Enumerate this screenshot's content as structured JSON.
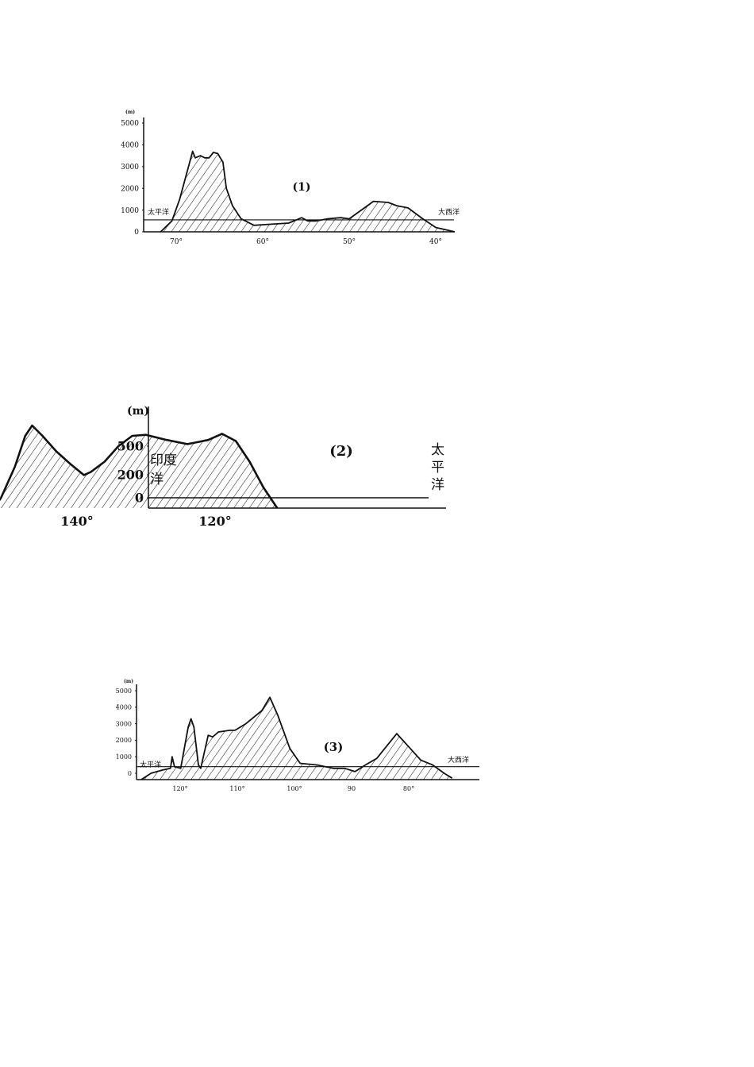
{
  "profiles": [
    {
      "label": "(1)",
      "unit": "(m)",
      "left_label": "太平洋",
      "right_label": "大西洋",
      "y_ticks": [
        0,
        1000,
        2000,
        3000,
        4000,
        5000
      ],
      "x_ticks": [
        {
          "value": 70,
          "label": "70°"
        },
        {
          "value": 60,
          "label": "60°"
        },
        {
          "value": 50,
          "label": "50°"
        },
        {
          "value": 40,
          "label": "40°"
        }
      ],
      "sea_level_line": 550,
      "points": [
        [
          71.8,
          0
        ],
        [
          70.5,
          500
        ],
        [
          69.6,
          1500
        ],
        [
          68.1,
          3700
        ],
        [
          67.8,
          3400
        ],
        [
          67.2,
          3500
        ],
        [
          66.7,
          3400
        ],
        [
          66.2,
          3400
        ],
        [
          65.7,
          3650
        ],
        [
          65.2,
          3600
        ],
        [
          64.6,
          3200
        ],
        [
          64.2,
          2000
        ],
        [
          63.5,
          1200
        ],
        [
          62.5,
          600
        ],
        [
          61,
          300
        ],
        [
          59,
          350
        ],
        [
          57,
          400
        ],
        [
          55.5,
          650
        ],
        [
          54.8,
          500
        ],
        [
          53.8,
          500
        ],
        [
          52.5,
          600
        ],
        [
          51,
          650
        ],
        [
          50,
          600
        ],
        [
          48.6,
          1000
        ],
        [
          47.2,
          1400
        ],
        [
          45.5,
          1350
        ],
        [
          44.5,
          1200
        ],
        [
          43.2,
          1100
        ],
        [
          41.5,
          600
        ],
        [
          40,
          200
        ],
        [
          37.8,
          0
        ]
      ]
    },
    {
      "label": "(2)",
      "unit": "(m)",
      "left_label": "印度洋",
      "right_label": "太平洋",
      "y_ticks": [
        0,
        200,
        500
      ],
      "x_ticks": [
        {
          "value": 120,
          "label": "120°"
        },
        {
          "value": 140,
          "label": "140°"
        }
      ],
      "points": [
        [
          111,
          -100
        ],
        [
          113,
          100
        ],
        [
          115,
          350
        ],
        [
          117,
          550
        ],
        [
          119,
          620
        ],
        [
          121,
          560
        ],
        [
          124,
          520
        ],
        [
          127,
          560
        ],
        [
          130,
          610
        ],
        [
          132,
          600
        ],
        [
          134,
          500
        ],
        [
          136,
          350
        ],
        [
          138,
          250
        ],
        [
          139,
          220
        ],
        [
          141,
          330
        ],
        [
          143,
          450
        ],
        [
          145,
          600
        ],
        [
          146.5,
          700
        ],
        [
          147.5,
          600
        ],
        [
          149,
          300
        ],
        [
          151,
          0
        ],
        [
          152,
          -100
        ]
      ]
    },
    {
      "label": "(3)",
      "unit": "(m)",
      "left_label": "太平洋",
      "right_label": "大西洋",
      "y_ticks": [
        0,
        1000,
        2000,
        3000,
        4000,
        5000
      ],
      "x_ticks": [
        {
          "value": 120,
          "label": "120°"
        },
        {
          "value": 110,
          "label": "110°"
        },
        {
          "value": 100,
          "label": "100°"
        },
        {
          "value": 90,
          "label": "90"
        },
        {
          "value": 80,
          "label": "80°"
        }
      ],
      "sea_level_line": 400,
      "points": [
        [
          126.8,
          -400
        ],
        [
          125.1,
          0
        ],
        [
          123,
          200
        ],
        [
          121.7,
          300
        ],
        [
          121.4,
          1000
        ],
        [
          121,
          400
        ],
        [
          119.9,
          300
        ],
        [
          118.6,
          2800
        ],
        [
          118.1,
          3300
        ],
        [
          117.6,
          2800
        ],
        [
          116.8,
          500
        ],
        [
          116.4,
          300
        ],
        [
          115.1,
          2300
        ],
        [
          114.3,
          2200
        ],
        [
          113.3,
          2500
        ],
        [
          111.3,
          2600
        ],
        [
          110.4,
          2600
        ],
        [
          108.5,
          3000
        ],
        [
          105.7,
          3800
        ],
        [
          104.3,
          4600
        ],
        [
          102.9,
          3500
        ],
        [
          100.8,
          1500
        ],
        [
          99,
          600
        ],
        [
          96,
          500
        ],
        [
          93.2,
          300
        ],
        [
          91.2,
          300
        ],
        [
          89.4,
          100
        ],
        [
          87.6,
          500
        ],
        [
          85.6,
          900
        ],
        [
          82.1,
          2400
        ],
        [
          80,
          1600
        ],
        [
          77.9,
          800
        ],
        [
          75.8,
          500
        ],
        [
          73.8,
          0
        ],
        [
          72.4,
          -300
        ]
      ]
    }
  ]
}
